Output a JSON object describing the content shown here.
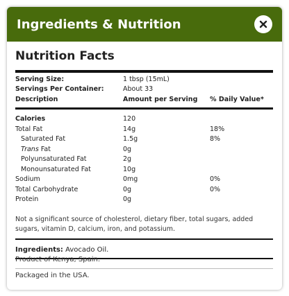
{
  "header": {
    "title": "Ingredients & Nutrition",
    "accent_color": "#486b0c",
    "close_icon": "close-icon"
  },
  "nutrition": {
    "title": "Nutrition Facts",
    "serving_size_label": "Serving Size:",
    "serving_size_value": "1 tbsp (15mL)",
    "servings_label": "Servings Per Container:",
    "servings_value": "About 33",
    "col_description": "Description",
    "col_amount": "Amount per Serving",
    "col_dv": "% Daily Value*",
    "rows": [
      {
        "name": "Calories",
        "amount": "120",
        "dv": ""
      },
      {
        "name": "Total Fat",
        "amount": "14g",
        "dv": "18%"
      },
      {
        "name": "Saturated Fat",
        "amount": "1.5g",
        "dv": "8%"
      },
      {
        "name_italic": "Trans",
        "name": " Fat",
        "amount": "0g",
        "dv": ""
      },
      {
        "name": "Polyunsaturated Fat",
        "amount": "2g",
        "dv": ""
      },
      {
        "name": "Monounsaturated Fat",
        "amount": "10g",
        "dv": ""
      },
      {
        "name": "Sodium",
        "amount": "0mg",
        "dv": "0%"
      },
      {
        "name": "Total Carbohydrate",
        "amount": "0g",
        "dv": "0%"
      },
      {
        "name": "Protein",
        "amount": "0g",
        "dv": ""
      }
    ],
    "note": "Not a significant source of cholesterol, dietary fiber, total sugars, added sugars, vitamin D, calcium, iron, and potassium."
  },
  "ingredients": {
    "label": "Ingredients:",
    "value": "Avocado Oil."
  },
  "origin": "Product of Kenya, Spain.",
  "packaged": "Packaged in the USA."
}
